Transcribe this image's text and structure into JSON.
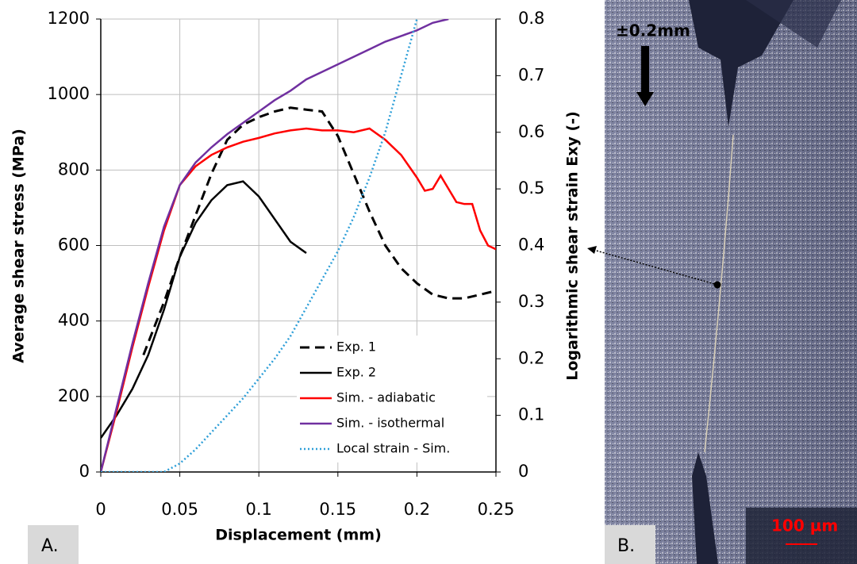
{
  "chart_data": {
    "type": "line",
    "xlabel": "Displacement (mm)",
    "ylabel": "Average shear stress (MPa)",
    "y2label": "Logarithmic shear strain Exy (-)",
    "xlim": [
      0,
      0.25
    ],
    "xticks": [
      0,
      0.05,
      0.1,
      0.15,
      0.2,
      0.25
    ],
    "ylim": [
      0,
      1200
    ],
    "yticks": [
      0,
      200,
      400,
      600,
      800,
      1000,
      1200
    ],
    "y2lim": [
      0,
      0.8
    ],
    "y2ticks": [
      0,
      0.1,
      0.2,
      0.3,
      0.4,
      0.5,
      0.6,
      0.7,
      0.8
    ],
    "grid": true,
    "legend": "lower right",
    "series": [
      {
        "name": "Exp. 1",
        "color": "#000000",
        "dash": "dashed",
        "x": [
          0.027,
          0.04,
          0.05,
          0.06,
          0.07,
          0.08,
          0.09,
          0.1,
          0.11,
          0.12,
          0.13,
          0.14,
          0.15,
          0.16,
          0.17,
          0.18,
          0.19,
          0.2,
          0.21,
          0.22,
          0.23,
          0.24,
          0.25
        ],
        "values": [
          310,
          450,
          570,
          680,
          790,
          880,
          920,
          940,
          955,
          965,
          960,
          955,
          890,
          790,
          690,
          600,
          540,
          500,
          470,
          460,
          460,
          470,
          480
        ]
      },
      {
        "name": "Exp. 2",
        "color": "#000000",
        "dash": "solid",
        "x": [
          0,
          0.01,
          0.02,
          0.03,
          0.04,
          0.05,
          0.06,
          0.07,
          0.08,
          0.09,
          0.1,
          0.11,
          0.12,
          0.13
        ],
        "values": [
          90,
          150,
          220,
          310,
          430,
          570,
          660,
          720,
          760,
          770,
          730,
          670,
          610,
          580
        ]
      },
      {
        "name": "Sim. - adiabatic",
        "color": "#ff0000",
        "dash": "solid",
        "x": [
          0,
          0.01,
          0.02,
          0.03,
          0.04,
          0.05,
          0.06,
          0.07,
          0.08,
          0.09,
          0.1,
          0.11,
          0.12,
          0.13,
          0.14,
          0.15,
          0.16,
          0.17,
          0.18,
          0.19,
          0.2,
          0.205,
          0.21,
          0.215,
          0.22,
          0.225,
          0.23,
          0.235,
          0.24,
          0.245,
          0.25
        ],
        "values": [
          0,
          160,
          330,
          490,
          640,
          760,
          810,
          840,
          860,
          875,
          885,
          897,
          905,
          910,
          905,
          905,
          900,
          910,
          880,
          840,
          780,
          745,
          750,
          785,
          750,
          715,
          710,
          710,
          640,
          600,
          590
        ]
      },
      {
        "name": "Sim. - isothermal",
        "color": "#7030a0",
        "dash": "solid",
        "x": [
          0,
          0.01,
          0.02,
          0.03,
          0.04,
          0.05,
          0.06,
          0.07,
          0.08,
          0.09,
          0.1,
          0.11,
          0.12,
          0.13,
          0.14,
          0.15,
          0.16,
          0.17,
          0.18,
          0.19,
          0.2,
          0.21,
          0.22
        ],
        "values": [
          0,
          170,
          340,
          500,
          650,
          760,
          820,
          860,
          895,
          925,
          955,
          985,
          1010,
          1040,
          1060,
          1080,
          1100,
          1120,
          1140,
          1155,
          1170,
          1190,
          1200
        ]
      },
      {
        "name": "Local strain - Sim.",
        "color": "#2e9fd8",
        "dash": "dotted",
        "axis": "y2",
        "x": [
          0,
          0.04,
          0.05,
          0.06,
          0.07,
          0.08,
          0.09,
          0.1,
          0.11,
          0.12,
          0.13,
          0.14,
          0.15,
          0.16,
          0.17,
          0.18,
          0.19,
          0.2
        ],
        "values": [
          0,
          0,
          0.015,
          0.04,
          0.07,
          0.1,
          0.13,
          0.165,
          0.2,
          0.24,
          0.29,
          0.34,
          0.39,
          0.45,
          0.52,
          0.6,
          0.7,
          0.8
        ]
      }
    ]
  },
  "panel_labels": [
    "A.",
    "B."
  ],
  "micrograph": {
    "load_label": "±0.2mm",
    "scale_label": "100 µm"
  }
}
